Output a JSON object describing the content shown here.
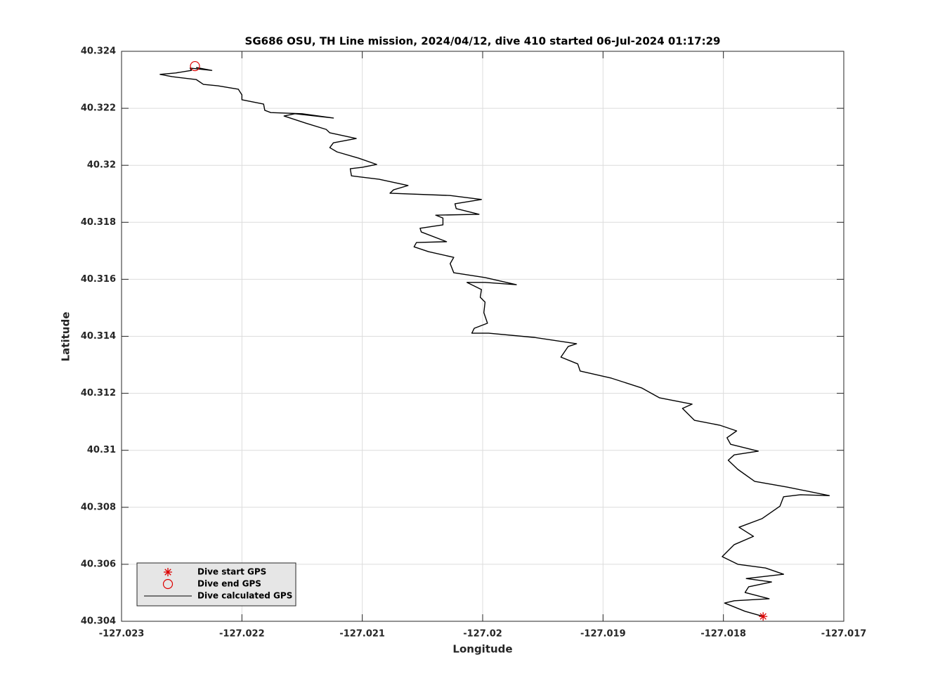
{
  "chart_data": {
    "type": "line",
    "title": "SG686 OSU, TH Line mission, 2024/04/12, dive 410 started 06-Jul-2024 01:17:29",
    "xlabel": "Longitude",
    "ylabel": "Latitude",
    "xlim": [
      -127.023,
      -127.017
    ],
    "ylim": [
      40.304,
      40.324
    ],
    "xticks": [
      -127.023,
      -127.022,
      -127.021,
      -127.02,
      -127.019,
      -127.018,
      -127.017
    ],
    "yticks": [
      40.304,
      40.306,
      40.308,
      40.31,
      40.312,
      40.314,
      40.316,
      40.318,
      40.32,
      40.322,
      40.324
    ],
    "grid": true,
    "legend": "southwest",
    "series": [
      {
        "name": "Dive start GPS",
        "type": "scatter",
        "marker": "asterisk",
        "color": "#dd0000",
        "x": [
          -127.01767
        ],
        "values": [
          40.30417
        ]
      },
      {
        "name": "Dive end GPS",
        "type": "scatter",
        "marker": "circle",
        "color": "#dd0000",
        "x": [
          -127.02239
        ],
        "values": [
          40.32348
        ]
      },
      {
        "name": "Dive calculated GPS",
        "type": "line",
        "color": "#000000",
        "x": [
          -127.01767,
          -127.01782,
          -127.01799,
          -127.01791,
          -127.01762,
          -127.01782,
          -127.01779,
          -127.0176,
          -127.01781,
          -127.0175,
          -127.01765,
          -127.01788,
          -127.01801,
          -127.01791,
          -127.01775,
          -127.01787,
          -127.01768,
          -127.01753,
          -127.0175,
          -127.01736,
          -127.01712,
          -127.01747,
          -127.01774,
          -127.01788,
          -127.01796,
          -127.01791,
          -127.01771,
          -127.01794,
          -127.01797,
          -127.01789,
          -127.01803,
          -127.01824,
          -127.01834,
          -127.01826,
          -127.01853,
          -127.01868,
          -127.01893,
          -127.01919,
          -127.01921,
          -127.01935,
          -127.01929,
          -127.01922,
          -127.01957,
          -127.01995,
          -127.02009,
          -127.02007,
          -127.01996,
          -127.01999,
          -127.01998,
          -127.02002,
          -127.02001,
          -127.02013,
          -127.01998,
          -127.01972,
          -127.01998,
          -127.02024,
          -127.02027,
          -127.02024,
          -127.02045,
          -127.02057,
          -127.02055,
          -127.0203,
          -127.02051,
          -127.02052,
          -127.02033,
          -127.02033,
          -127.02039,
          -127.02003,
          -127.02022,
          -127.02023,
          -127.02001,
          -127.02027,
          -127.02077,
          -127.02074,
          -127.02062,
          -127.02086,
          -127.02109,
          -127.0211,
          -127.021,
          -127.02088,
          -127.02103,
          -127.02121,
          -127.02127,
          -127.02124,
          -127.02105,
          -127.02127,
          -127.0213,
          -127.02147,
          -127.02165,
          -127.02156,
          -127.02124,
          -127.0215,
          -127.02176,
          -127.02181,
          -127.02182,
          -127.022,
          -127.022,
          -127.02203,
          -127.0222,
          -127.02232,
          -127.02238,
          -127.02258,
          -127.02268,
          -127.02255,
          -127.02242,
          -127.02243,
          -127.02225,
          -127.02238
        ],
        "values": [
          40.30417,
          40.30435,
          40.30464,
          40.30472,
          40.30479,
          40.30501,
          40.30521,
          40.30538,
          40.3055,
          40.30565,
          40.30587,
          40.306,
          40.30627,
          40.30669,
          40.30698,
          40.3073,
          40.3076,
          40.30804,
          40.30837,
          40.30844,
          40.30841,
          40.30871,
          40.30891,
          40.30933,
          40.30965,
          40.30984,
          40.30997,
          40.31021,
          40.31044,
          40.31068,
          40.31088,
          40.31105,
          40.31147,
          40.31162,
          40.31184,
          40.31219,
          40.31253,
          40.31278,
          40.31303,
          40.31327,
          40.31364,
          40.31374,
          40.31396,
          40.31411,
          40.31411,
          40.31428,
          40.31446,
          40.31483,
          40.3152,
          40.31537,
          40.31564,
          40.31589,
          40.31589,
          40.31581,
          40.31606,
          40.31623,
          40.31655,
          40.31677,
          40.31697,
          40.31714,
          40.31729,
          40.31732,
          40.31766,
          40.31779,
          40.31791,
          40.31815,
          40.31825,
          40.31828,
          40.31848,
          40.31865,
          40.3188,
          40.31894,
          40.31902,
          40.31914,
          40.31929,
          40.31951,
          40.31963,
          40.31988,
          40.31993,
          40.32003,
          40.32025,
          40.32047,
          40.32062,
          40.32079,
          40.32094,
          40.32114,
          40.32126,
          40.32148,
          40.32173,
          40.32181,
          40.32166,
          40.32181,
          40.32185,
          40.32193,
          40.32215,
          40.3223,
          40.32247,
          40.32267,
          40.32279,
          40.32284,
          40.32301,
          40.32311,
          40.32319,
          40.32324,
          40.32333,
          40.32341,
          40.32333,
          40.32343
        ]
      }
    ]
  }
}
